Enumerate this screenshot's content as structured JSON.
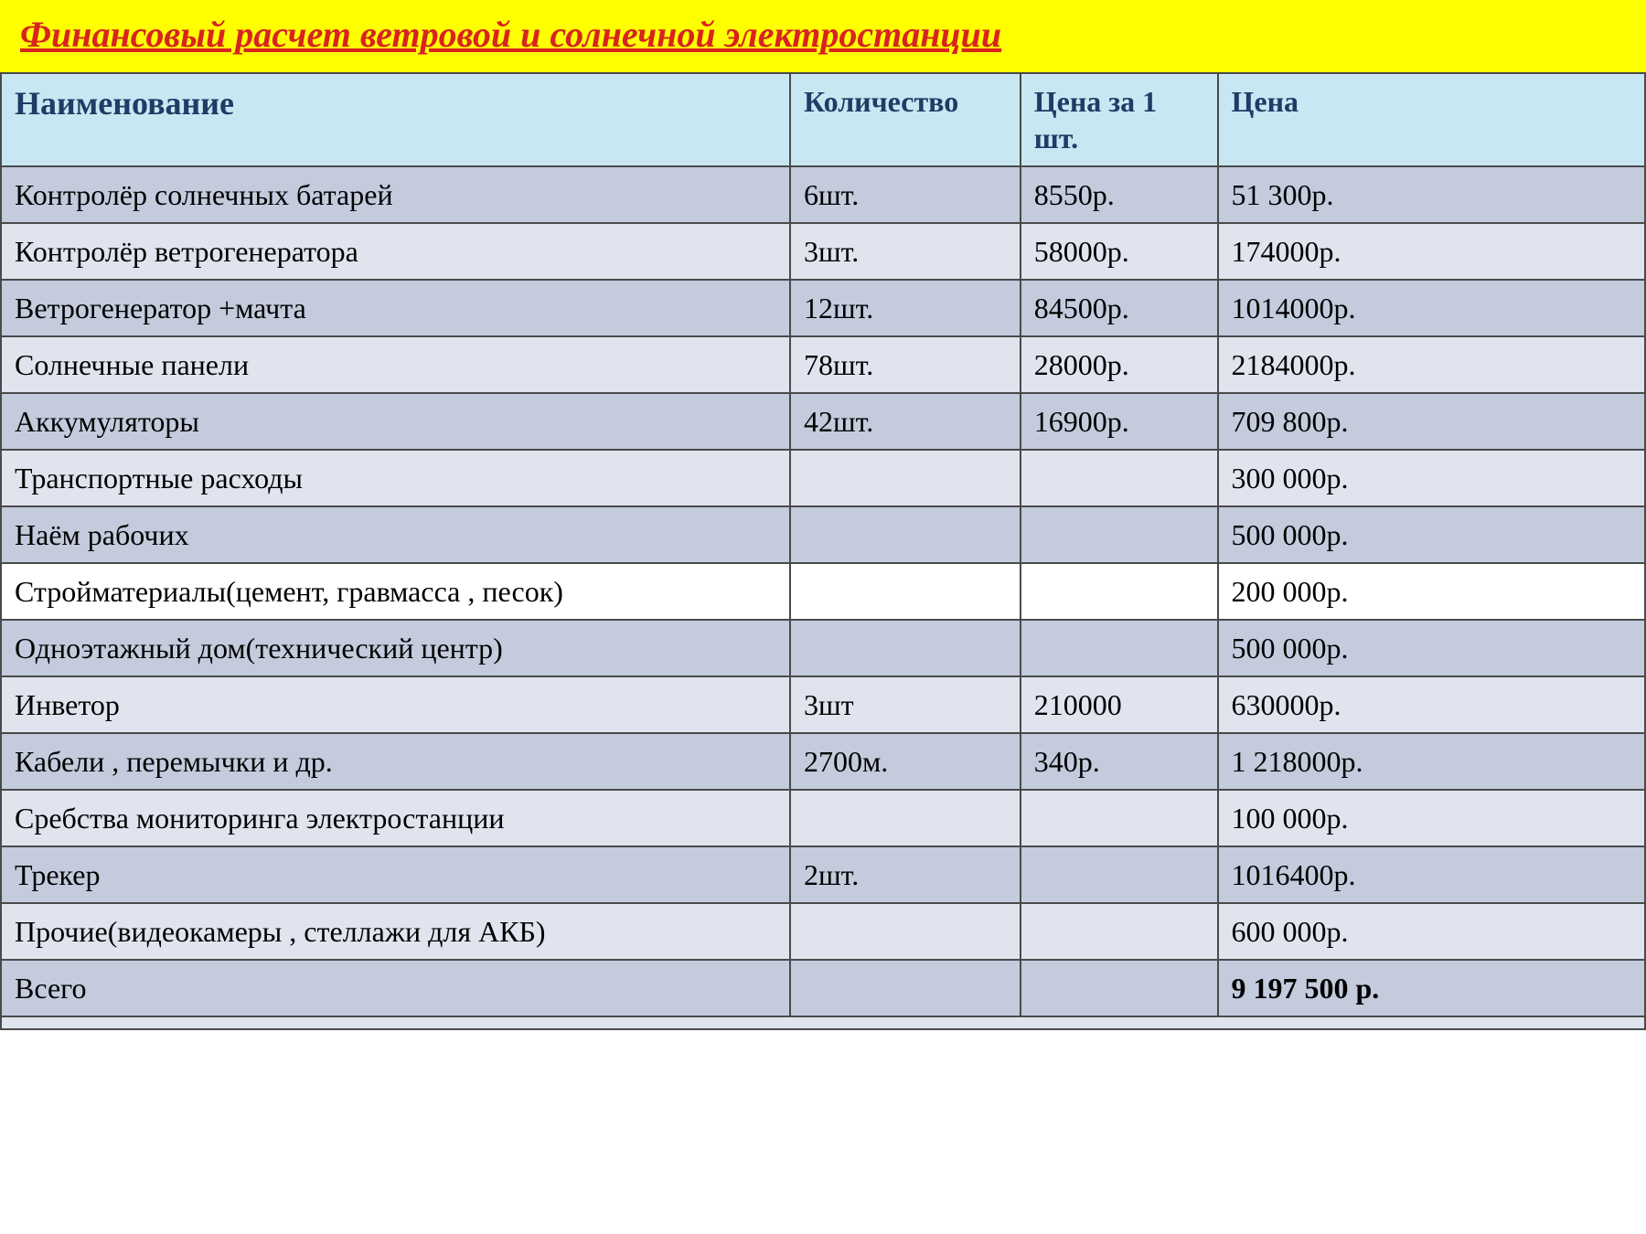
{
  "title": {
    "text": "Финансовый расчет  ветровой и солнечной электростанции",
    "color": "#d8231f",
    "background": "#ffff00"
  },
  "table": {
    "header_bg": "#c9e7f3",
    "header_color": "#1f3c66",
    "border_color": "#4a4a4a",
    "text_color": "#000000",
    "row_colors": {
      "blue_dark": "#c3cbdd",
      "blue_light": "#e0e4ef",
      "white": "#ffffff"
    },
    "columns": [
      "Наименование",
      "Количество",
      "Цена за 1 шт.",
      "Цена"
    ],
    "rows": [
      {
        "bg": "blue_dark",
        "cells": [
          "Контролёр солнечных батарей",
          " 6шт.",
          "8550р.",
          "51 300р."
        ]
      },
      {
        "bg": "blue_light",
        "cells": [
          "Контролёр ветрогенератора",
          "3шт.",
          "58000р.",
          "174000р."
        ]
      },
      {
        "bg": "blue_dark",
        "cells": [
          "Ветрогенератор +мачта",
          "12шт.",
          "84500р.",
          "1014000р."
        ]
      },
      {
        "bg": "blue_light",
        "cells": [
          "Солнечные панели",
          "78шт.",
          "28000р.",
          "2184000р."
        ]
      },
      {
        "bg": "blue_dark",
        "cells": [
          "Аккумуляторы",
          "42шт.",
          "16900р.",
          "709 800р."
        ]
      },
      {
        "bg": "blue_light",
        "cells": [
          "Транспортные расходы",
          "",
          "",
          "300 000р."
        ]
      },
      {
        "bg": "blue_dark",
        "cells": [
          "Наём рабочих",
          "",
          "",
          "500 000р."
        ]
      },
      {
        "bg": "white",
        "cells": [
          "Стройматериалы(цемент, гравмасса , песок)",
          "",
          "",
          "200 000р."
        ]
      },
      {
        "bg": "blue_dark",
        "cells": [
          "Одноэтажный дом(технический центр)",
          "",
          "",
          "500 000р."
        ]
      },
      {
        "bg": "blue_light",
        "cells": [
          "Инветор",
          "3шт",
          "210000",
          "630000р."
        ]
      },
      {
        "bg": "blue_dark",
        "cells": [
          "Кабели , перемычки  и др.",
          "2700м.",
          "340р.",
          "1 218000р."
        ]
      },
      {
        "bg": "blue_light",
        "cells": [
          "Сребства мониторинга электростанции",
          "",
          "",
          "100 000р."
        ]
      },
      {
        "bg": "blue_dark",
        "cells": [
          "Трекер",
          "2шт.",
          "",
          "1016400р."
        ]
      },
      {
        "bg": "blue_light",
        "cells": [
          "Прочие(видеокамеры , стеллажи для АКБ)",
          "",
          "",
          "600 000р."
        ]
      }
    ],
    "total_row": {
      "bg": "blue_dark",
      "label": "Всего",
      "value": "9 197 500 р."
    },
    "footer_strip_bg": "blue_light"
  }
}
